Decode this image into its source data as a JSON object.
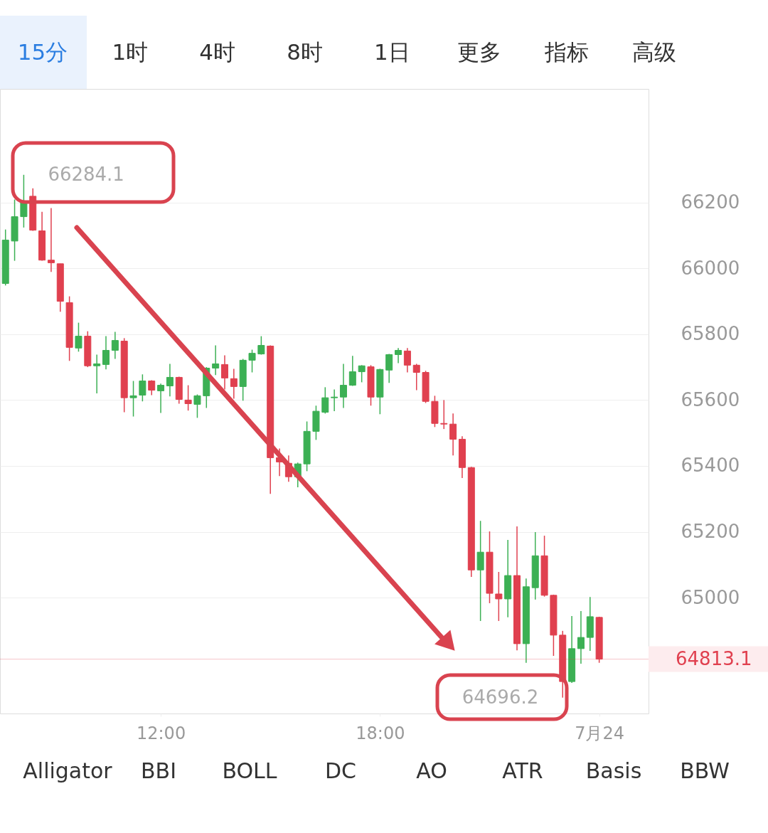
{
  "chart_data": {
    "type": "candlestick",
    "x": [
      7.75,
      8.0,
      8.25,
      8.5,
      8.75,
      9.0,
      9.25,
      9.5,
      9.75,
      10.0,
      10.25,
      10.5,
      10.75,
      11.0,
      11.25,
      11.5,
      11.75,
      12.0,
      12.25,
      12.5,
      12.75,
      13.0,
      13.25,
      13.5,
      13.75,
      14.0,
      14.25,
      14.5,
      14.75,
      15.0,
      15.25,
      15.5,
      15.75,
      16.0,
      16.25,
      16.5,
      16.75,
      17.0,
      17.25,
      17.5,
      17.75,
      18.0,
      18.25,
      18.5,
      18.75,
      19.0,
      19.25,
      19.5,
      19.75,
      20.0,
      20.25,
      20.5,
      20.75,
      21.0,
      21.25,
      21.5,
      21.75,
      22.0,
      22.25,
      22.5,
      22.75,
      23.0,
      23.25,
      23.5,
      23.75,
      24.0
    ],
    "ohlc": [
      [
        65954,
        66118,
        65948,
        66086
      ],
      [
        66083,
        66209,
        66023,
        66157
      ],
      [
        66157,
        66284.1,
        66124,
        66202
      ],
      [
        66219,
        66243,
        66114,
        66116
      ],
      [
        66114,
        66172,
        66023,
        66025
      ],
      [
        66025,
        66183,
        65989,
        66017
      ],
      [
        66014,
        66014,
        65868,
        65900
      ],
      [
        65896,
        65915,
        65719,
        65760
      ],
      [
        65758,
        65835,
        65747,
        65794
      ],
      [
        65794,
        65809,
        65700,
        65704
      ],
      [
        65704,
        65738,
        65620,
        65710
      ],
      [
        65708,
        65794,
        65693,
        65751
      ],
      [
        65751,
        65807,
        65725,
        65781
      ],
      [
        65779,
        65788,
        65563,
        65607
      ],
      [
        65607,
        65658,
        65550,
        65613
      ],
      [
        65615,
        65678,
        65596,
        65658
      ],
      [
        65658,
        65660,
        65615,
        65630
      ],
      [
        65628,
        65650,
        65561,
        65645
      ],
      [
        65643,
        65710,
        65611,
        65669
      ],
      [
        65669,
        65671,
        65589,
        65602
      ],
      [
        65600,
        65645,
        65568,
        65589
      ],
      [
        65587,
        65617,
        65546,
        65613
      ],
      [
        65613,
        65700,
        65576,
        65697
      ],
      [
        65697,
        65766,
        65676,
        65710
      ],
      [
        65708,
        65736,
        65632,
        65667
      ],
      [
        65665,
        65695,
        65604,
        65641
      ],
      [
        65641,
        65725,
        65598,
        65721
      ],
      [
        65721,
        65753,
        65684,
        65742
      ],
      [
        65740,
        65794,
        65738,
        65766
      ],
      [
        65764,
        65766,
        65315,
        65425
      ],
      [
        65425,
        65453,
        65369,
        65412
      ],
      [
        65408,
        65432,
        65352,
        65367
      ],
      [
        65367,
        65410,
        65335,
        65406
      ],
      [
        65406,
        65535,
        65384,
        65505
      ],
      [
        65505,
        65583,
        65479,
        65566
      ],
      [
        65563,
        65639,
        65559,
        65607
      ],
      [
        65607,
        65632,
        65566,
        65609
      ],
      [
        65609,
        65710,
        65576,
        65645
      ],
      [
        65645,
        65734,
        65643,
        65686
      ],
      [
        65686,
        65706,
        65654,
        65704
      ],
      [
        65701,
        65706,
        65583,
        65609
      ],
      [
        65609,
        65695,
        65557,
        65693
      ],
      [
        65691,
        65740,
        65652,
        65738
      ],
      [
        65738,
        65758,
        65712,
        65751
      ],
      [
        65749,
        65758,
        65684,
        65706
      ],
      [
        65706,
        65710,
        65630,
        65684
      ],
      [
        65684,
        65689,
        65591,
        65596
      ],
      [
        65596,
        65613,
        65518,
        65529
      ],
      [
        65529,
        65600,
        65512,
        65527
      ],
      [
        65527,
        65559,
        65432,
        65481
      ],
      [
        65481,
        65490,
        65363,
        65395
      ],
      [
        65395,
        65397,
        65063,
        65084
      ],
      [
        65084,
        65233,
        64929,
        65138
      ],
      [
        65138,
        65201,
        64983,
        65013
      ],
      [
        65011,
        65078,
        64929,
        64996
      ],
      [
        64996,
        65175,
        64940,
        65067
      ],
      [
        65067,
        65216,
        64840,
        64860
      ],
      [
        64860,
        65058,
        64802,
        65033
      ],
      [
        65030,
        65199,
        64994,
        65127
      ],
      [
        65127,
        65188,
        65003,
        65007
      ],
      [
        65007,
        65009,
        64823,
        64886
      ],
      [
        64886,
        64899,
        64696.2,
        64745
      ],
      [
        64745,
        64944,
        64741,
        64845
      ],
      [
        64845,
        64959,
        64799,
        64879
      ],
      [
        64879,
        65002,
        64838,
        64942
      ],
      [
        64940,
        64942,
        64802,
        64813.1
      ]
    ],
    "colors": [
      "#3cb054",
      "#3cb054",
      "#3cb054",
      "#e0404f",
      "#e0404f",
      "#e0404f",
      "#e0404f",
      "#e0404f",
      "#3cb054",
      "#e0404f",
      "#3cb054",
      "#3cb054",
      "#3cb054",
      "#e0404f",
      "#3cb054",
      "#3cb054",
      "#e0404f",
      "#3cb054",
      "#3cb054",
      "#e0404f",
      "#e0404f",
      "#3cb054",
      "#3cb054",
      "#3cb054",
      "#e0404f",
      "#e0404f",
      "#3cb054",
      "#3cb054",
      "#3cb054",
      "#e0404f",
      "#e0404f",
      "#e0404f",
      "#3cb054",
      "#3cb054",
      "#3cb054",
      "#3cb054",
      "#3cb054",
      "#3cb054",
      "#3cb054",
      "#3cb054",
      "#e0404f",
      "#3cb054",
      "#3cb054",
      "#3cb054",
      "#e0404f",
      "#e0404f",
      "#e0404f",
      "#e0404f",
      "#e0404f",
      "#e0404f",
      "#e0404f",
      "#e0404f",
      "#3cb054",
      "#e0404f",
      "#e0404f",
      "#3cb054",
      "#e0404f",
      "#3cb054",
      "#3cb054",
      "#e0404f",
      "#e0404f",
      "#e0404f",
      "#3cb054",
      "#3cb054",
      "#3cb054",
      "#e0404f"
    ],
    "xlim": [
      7.6,
      25.35
    ],
    "xticks": [
      {
        "value": 12,
        "label": "12:00"
      },
      {
        "value": 18,
        "label": "18:00"
      },
      {
        "value": 24,
        "label": "7月24"
      }
    ],
    "ylim": [
      64648,
      66545
    ],
    "yticks": [
      65000,
      65200,
      65400,
      65600,
      65800,
      66000,
      66200
    ],
    "grid": "y",
    "ref_lines": [
      {
        "axis": "y",
        "value": 64813.1,
        "label": "64813.1",
        "color": "#e0404f"
      }
    ],
    "annotations": [
      {
        "text": "66284.1",
        "x": 8.25,
        "y": 66284.1
      },
      {
        "text": "64696.2",
        "x": 23.0,
        "y": 64696.2
      },
      "15分",
      "1时",
      "4时",
      "8时",
      "1日",
      "更多",
      "指标",
      "高级",
      "Alligator",
      "BBI",
      "BOLL",
      "DC",
      "AO",
      "ATR",
      "Basis",
      "BBW"
    ]
  }
}
